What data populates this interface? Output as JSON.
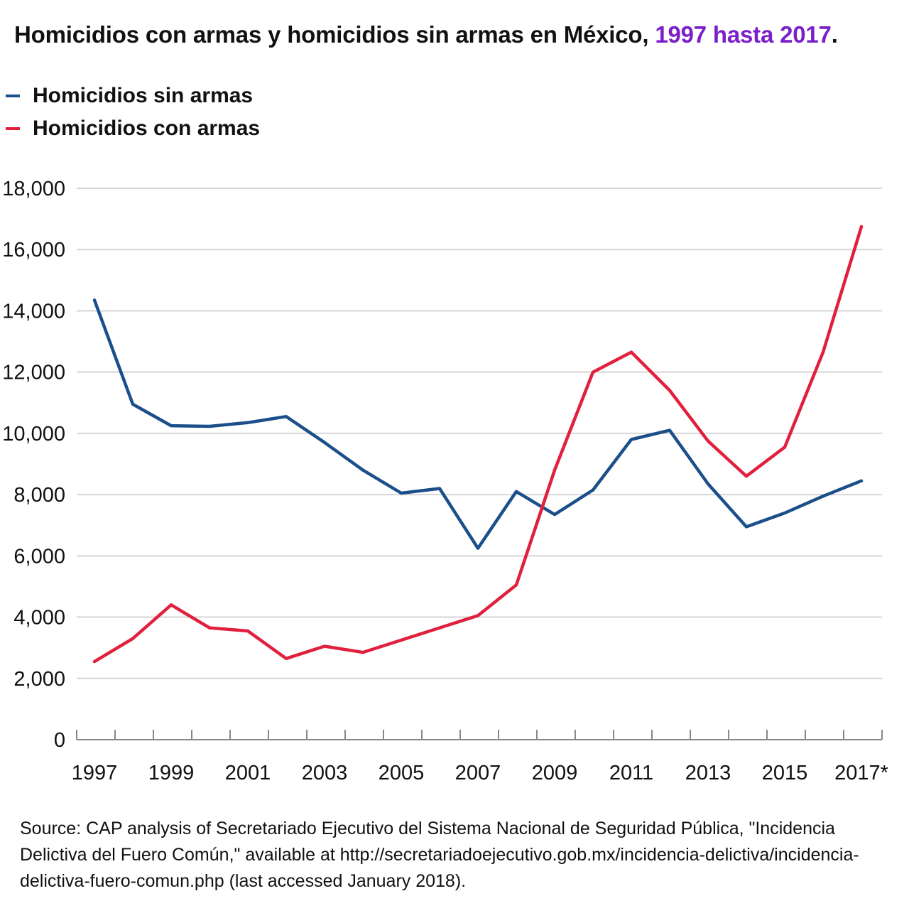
{
  "title": {
    "main": "Homicidios con armas y homicidios sin armas en México, ",
    "highlight": "1997 hasta 2017",
    "end": "."
  },
  "source": "Source: CAP analysis of Secretariado Ejecutivo del Sistema Nacional de Seguridad Pública, \"Incidencia Delictiva del Fuero Común,\" available at http://secretariadoejecutivo.gob.mx/incidencia-delictiva/incidencia-delictiva-fuero-comun.php (last accessed January 2018).",
  "colors": {
    "sin_armas": "#1b4f8a",
    "con_armas": "#e0203c",
    "highlight": "#7a1fc9",
    "grid": "#d6d6d6"
  },
  "chart_data": {
    "type": "line",
    "title": "Homicidios con armas y homicidios sin armas en México, 1997 hasta 2017.",
    "x": [
      1997,
      1998,
      1999,
      2000,
      2001,
      2002,
      2003,
      2004,
      2005,
      2006,
      2007,
      2008,
      2009,
      2010,
      2011,
      2012,
      2013,
      2014,
      2015,
      2016,
      2017
    ],
    "x_tick_labels": [
      "1997",
      "1999",
      "2001",
      "2003",
      "2005",
      "2007",
      "2009",
      "2011",
      "2013",
      "2015",
      "2017*"
    ],
    "x_tick_values": [
      1997,
      1999,
      2001,
      2003,
      2005,
      2007,
      2009,
      2011,
      2013,
      2015,
      2017
    ],
    "y_tick_labels": [
      "0",
      "2,000",
      "4,000",
      "6,000",
      "8,000",
      "10,000",
      "12,000",
      "14,000",
      "16,000",
      "18,000"
    ],
    "y_tick_values": [
      0,
      2000,
      4000,
      6000,
      8000,
      10000,
      12000,
      14000,
      16000,
      18000
    ],
    "ylim": [
      0,
      18000
    ],
    "grid": true,
    "legend_position": "top-left",
    "series": [
      {
        "name": "Homicidios sin armas",
        "color": "#1b4f8a",
        "values": [
          14350,
          10950,
          10250,
          10230,
          10350,
          10550,
          9700,
          8800,
          8050,
          8200,
          6250,
          8100,
          7350,
          8150,
          9800,
          10100,
          8350,
          6950,
          7400,
          7950,
          8450
        ]
      },
      {
        "name": "Homicidios con armas",
        "color": "#e0203c",
        "values": [
          2550,
          3300,
          4400,
          3650,
          3550,
          2650,
          3050,
          2850,
          3250,
          3650,
          4050,
          5050,
          8800,
          12000,
          12650,
          11400,
          9750,
          8600,
          9550,
          12650,
          16750
        ]
      }
    ]
  }
}
